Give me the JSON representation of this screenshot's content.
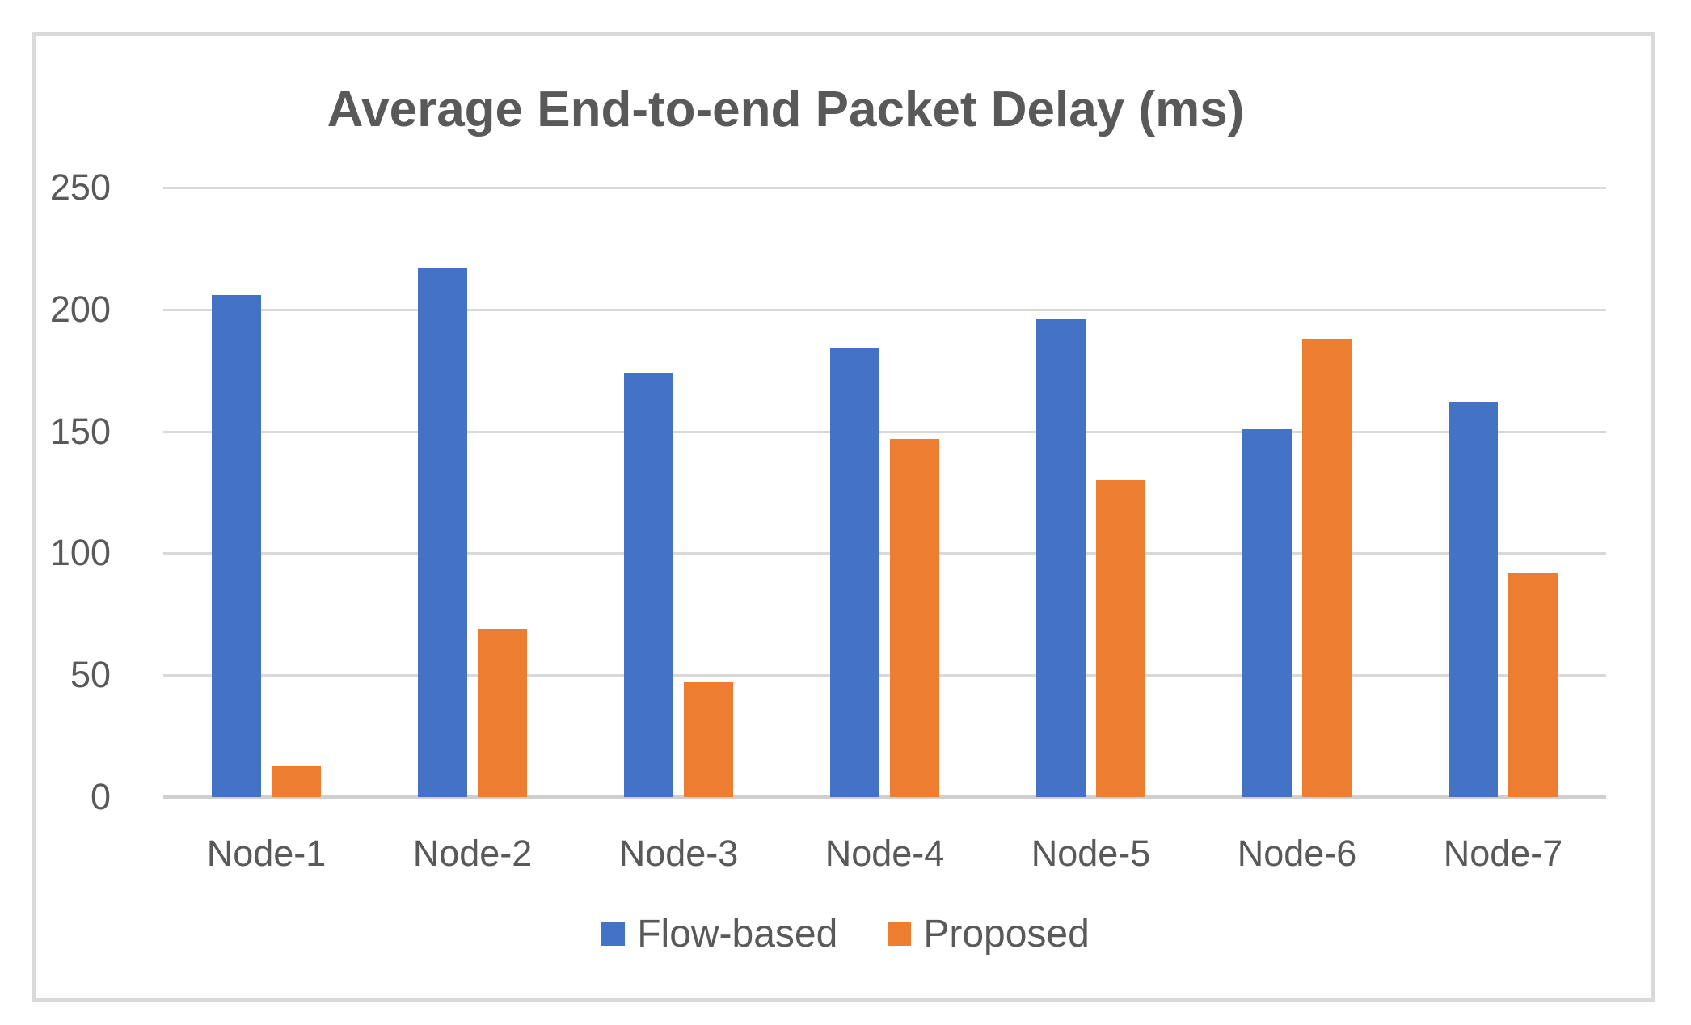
{
  "chart_data": {
    "type": "bar",
    "title": "Average End-to-end Packet Delay (ms)",
    "categories": [
      "Node-1",
      "Node-2",
      "Node-3",
      "Node-4",
      "Node-5",
      "Node-6",
      "Node-7"
    ],
    "series": [
      {
        "name": "Flow-based",
        "color": "#4472C4",
        "values": [
          206,
          217,
          174,
          184,
          196,
          151,
          162
        ]
      },
      {
        "name": "Proposed",
        "color": "#ED7D31",
        "values": [
          13,
          69,
          47,
          147,
          130,
          188,
          92
        ]
      }
    ],
    "xlabel": "",
    "ylabel": "",
    "ylim": [
      0,
      250
    ],
    "y_ticks": [
      0,
      50,
      100,
      150,
      200,
      250
    ],
    "grid": true,
    "legend_position": "bottom",
    "colors": {
      "title_text": "#595959",
      "axis_text": "#595959",
      "gridline": "#D9D9D9",
      "axis_line": "#CFCFCF",
      "frame_border": "#D9D9D9",
      "background": "#FFFFFF"
    }
  }
}
